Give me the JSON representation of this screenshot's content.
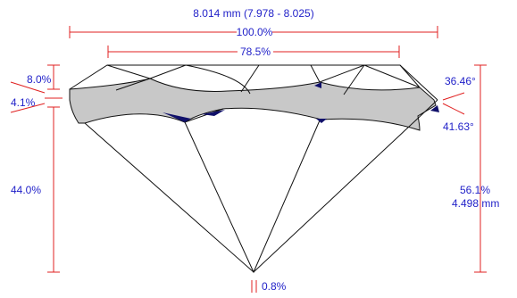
{
  "measurements": {
    "diameter": "8.014 mm (7.978 - 8.025)",
    "total_width": "100.0%",
    "table": "78.5%",
    "crown_height": "8.0%",
    "girdle": "4.1%",
    "pavilion_depth": "44.0%",
    "crown_angle": "36.46°",
    "pavilion_angle": "41.63°",
    "total_depth_pct": "56.1%",
    "total_depth_mm": "4.498 mm",
    "culet": "0.8%"
  },
  "colors": {
    "label": "#1f1fc8",
    "dimension_line": "#e02020",
    "girdle_fill": "#c8c8c8",
    "outline": "#111111",
    "dark_patch": "#10106a"
  }
}
